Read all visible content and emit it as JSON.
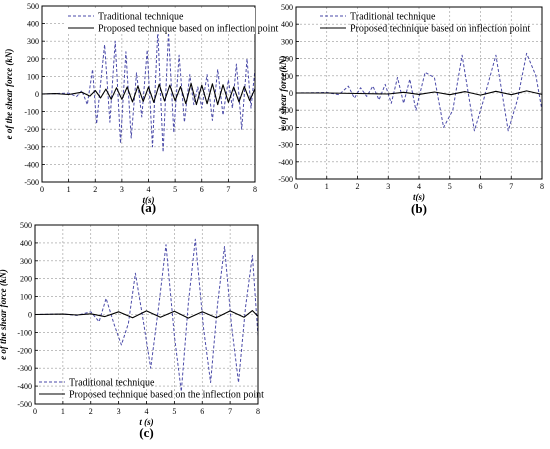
{
  "chart_data": [
    {
      "type": "line",
      "panel_label": "(a)",
      "xlabel": "t(s)",
      "ylabel": "e of the shear force (kN)",
      "xlim": [
        0,
        8
      ],
      "ylim": [
        -500,
        500
      ],
      "xticks": [
        0,
        1,
        2,
        3,
        4,
        5,
        6,
        7,
        8
      ],
      "yticks": [
        -500,
        -400,
        -300,
        -200,
        -100,
        0,
        100,
        200,
        300,
        400,
        500
      ],
      "grid": true,
      "legend_position": "top-left",
      "series": [
        {
          "name": "Traditional technique",
          "style": "dashed",
          "color": "#4a4aa8",
          "points": [
            [
              0,
              0
            ],
            [
              0.5,
              2
            ],
            [
              1,
              5
            ],
            [
              1.3,
              -15
            ],
            [
              1.5,
              20
            ],
            [
              1.7,
              -60
            ],
            [
              1.9,
              140
            ],
            [
              2.05,
              -170
            ],
            [
              2.2,
              60
            ],
            [
              2.35,
              280
            ],
            [
              2.55,
              -160
            ],
            [
              2.75,
              300
            ],
            [
              2.95,
              -280
            ],
            [
              3.15,
              240
            ],
            [
              3.35,
              -250
            ],
            [
              3.55,
              120
            ],
            [
              3.75,
              -130
            ],
            [
              3.95,
              250
            ],
            [
              4.15,
              -300
            ],
            [
              4.35,
              360
            ],
            [
              4.55,
              -330
            ],
            [
              4.75,
              350
            ],
            [
              4.95,
              -220
            ],
            [
              5.15,
              220
            ],
            [
              5.35,
              -160
            ],
            [
              5.55,
              110
            ],
            [
              5.7,
              -60
            ],
            [
              5.85,
              40
            ],
            [
              6.0,
              -80
            ],
            [
              6.2,
              110
            ],
            [
              6.4,
              -150
            ],
            [
              6.6,
              140
            ],
            [
              6.8,
              -120
            ],
            [
              7.0,
              80
            ],
            [
              7.15,
              -80
            ],
            [
              7.3,
              170
            ],
            [
              7.5,
              -200
            ],
            [
              7.7,
              200
            ],
            [
              7.85,
              -80
            ],
            [
              8,
              140
            ]
          ]
        },
        {
          "name": "Proposed technique based on inflection point",
          "style": "solid",
          "color": "#000000",
          "points": [
            [
              0,
              0
            ],
            [
              0.5,
              2
            ],
            [
              1,
              -3
            ],
            [
              1.5,
              10
            ],
            [
              1.8,
              -12
            ],
            [
              2.0,
              20
            ],
            [
              2.2,
              -22
            ],
            [
              2.4,
              28
            ],
            [
              2.6,
              -30
            ],
            [
              2.8,
              35
            ],
            [
              3.0,
              -30
            ],
            [
              3.2,
              40
            ],
            [
              3.4,
              -45
            ],
            [
              3.6,
              45
            ],
            [
              3.8,
              -42
            ],
            [
              4.0,
              40
            ],
            [
              4.2,
              -48
            ],
            [
              4.4,
              55
            ],
            [
              4.6,
              -40
            ],
            [
              4.8,
              50
            ],
            [
              5.0,
              -38
            ],
            [
              5.2,
              42
            ],
            [
              5.4,
              -55
            ],
            [
              5.6,
              60
            ],
            [
              5.8,
              -60
            ],
            [
              6.0,
              50
            ],
            [
              6.2,
              -55
            ],
            [
              6.4,
              58
            ],
            [
              6.6,
              -60
            ],
            [
              6.8,
              52
            ],
            [
              7.0,
              -48
            ],
            [
              7.2,
              40
            ],
            [
              7.4,
              -45
            ],
            [
              7.6,
              42
            ],
            [
              7.8,
              -38
            ],
            [
              8,
              30
            ]
          ]
        }
      ]
    },
    {
      "type": "line",
      "panel_label": "(b)",
      "xlabel": "t(s)",
      "ylabel": "e of shear force(kN)",
      "xlim": [
        0,
        8
      ],
      "ylim": [
        -500,
        500
      ],
      "xticks": [
        0,
        1,
        2,
        3,
        4,
        5,
        6,
        7,
        8
      ],
      "yticks": [
        -500,
        -400,
        -300,
        -200,
        -100,
        0,
        100,
        200,
        300,
        400,
        500
      ],
      "grid": true,
      "legend_position": "top-left",
      "series": [
        {
          "name": "Traditional technique",
          "style": "dashed",
          "color": "#4a4aa8",
          "points": [
            [
              0,
              0
            ],
            [
              0.5,
              1
            ],
            [
              1,
              3
            ],
            [
              1.4,
              -10
            ],
            [
              1.7,
              40
            ],
            [
              1.9,
              -30
            ],
            [
              2.1,
              30
            ],
            [
              2.3,
              -20
            ],
            [
              2.5,
              40
            ],
            [
              2.7,
              -40
            ],
            [
              2.9,
              50
            ],
            [
              3.1,
              -60
            ],
            [
              3.3,
              90
            ],
            [
              3.5,
              -60
            ],
            [
              3.7,
              80
            ],
            [
              3.9,
              -100
            ],
            [
              4.2,
              120
            ],
            [
              4.5,
              90
            ],
            [
              4.8,
              -200
            ],
            [
              5.1,
              -100
            ],
            [
              5.4,
              220
            ],
            [
              5.8,
              -220
            ],
            [
              6.1,
              -40
            ],
            [
              6.5,
              220
            ],
            [
              6.9,
              -220
            ],
            [
              7.2,
              -40
            ],
            [
              7.5,
              230
            ],
            [
              7.8,
              100
            ],
            [
              8,
              -100
            ]
          ]
        },
        {
          "name": "Proposed technique based on inflection point",
          "style": "solid",
          "color": "#000000",
          "points": [
            [
              0,
              0
            ],
            [
              1,
              0
            ],
            [
              2,
              -3
            ],
            [
              3,
              -6
            ],
            [
              3.5,
              4
            ],
            [
              4,
              -8
            ],
            [
              4.5,
              6
            ],
            [
              5,
              -10
            ],
            [
              5.5,
              8
            ],
            [
              6,
              -12
            ],
            [
              6.5,
              10
            ],
            [
              7,
              -10
            ],
            [
              7.5,
              12
            ],
            [
              8,
              -8
            ]
          ]
        }
      ]
    },
    {
      "type": "line",
      "panel_label": "(c)",
      "xlabel": "t (s)",
      "ylabel": "e of the shear force (kN)",
      "xlim": [
        0,
        8
      ],
      "ylim": [
        -500,
        500
      ],
      "xticks": [
        0,
        1,
        2,
        3,
        4,
        5,
        6,
        7,
        8
      ],
      "yticks": [
        -500,
        -400,
        -300,
        -200,
        -100,
        0,
        100,
        200,
        300,
        400,
        500
      ],
      "grid": true,
      "legend_position": "bottom-left",
      "series": [
        {
          "name": "Traditional technique",
          "style": "dashed",
          "color": "#4a4aa8",
          "points": [
            [
              0,
              0
            ],
            [
              1,
              3
            ],
            [
              1.5,
              -5
            ],
            [
              2.0,
              15
            ],
            [
              2.3,
              -40
            ],
            [
              2.55,
              90
            ],
            [
              2.85,
              -60
            ],
            [
              3.1,
              -170
            ],
            [
              3.35,
              -50
            ],
            [
              3.6,
              230
            ],
            [
              3.9,
              -50
            ],
            [
              4.15,
              -300
            ],
            [
              4.45,
              60
            ],
            [
              4.7,
              390
            ],
            [
              5.0,
              -120
            ],
            [
              5.25,
              -430
            ],
            [
              5.5,
              60
            ],
            [
              5.75,
              420
            ],
            [
              6.05,
              -80
            ],
            [
              6.3,
              -380
            ],
            [
              6.55,
              60
            ],
            [
              6.8,
              380
            ],
            [
              7.05,
              -60
            ],
            [
              7.3,
              -380
            ],
            [
              7.55,
              40
            ],
            [
              7.8,
              330
            ],
            [
              8,
              -120
            ]
          ]
        },
        {
          "name": "Proposed technique based on the inflection point",
          "style": "solid",
          "color": "#000000",
          "points": [
            [
              0,
              0
            ],
            [
              1,
              2
            ],
            [
              1.5,
              -3
            ],
            [
              2,
              4
            ],
            [
              2.5,
              -12
            ],
            [
              3,
              15
            ],
            [
              3.5,
              -18
            ],
            [
              4,
              20
            ],
            [
              4.5,
              -15
            ],
            [
              5,
              18
            ],
            [
              5.5,
              -20
            ],
            [
              6,
              15
            ],
            [
              6.5,
              -18
            ],
            [
              7,
              20
            ],
            [
              7.5,
              -15
            ],
            [
              7.8,
              22
            ],
            [
              8,
              -10
            ]
          ]
        }
      ]
    }
  ]
}
